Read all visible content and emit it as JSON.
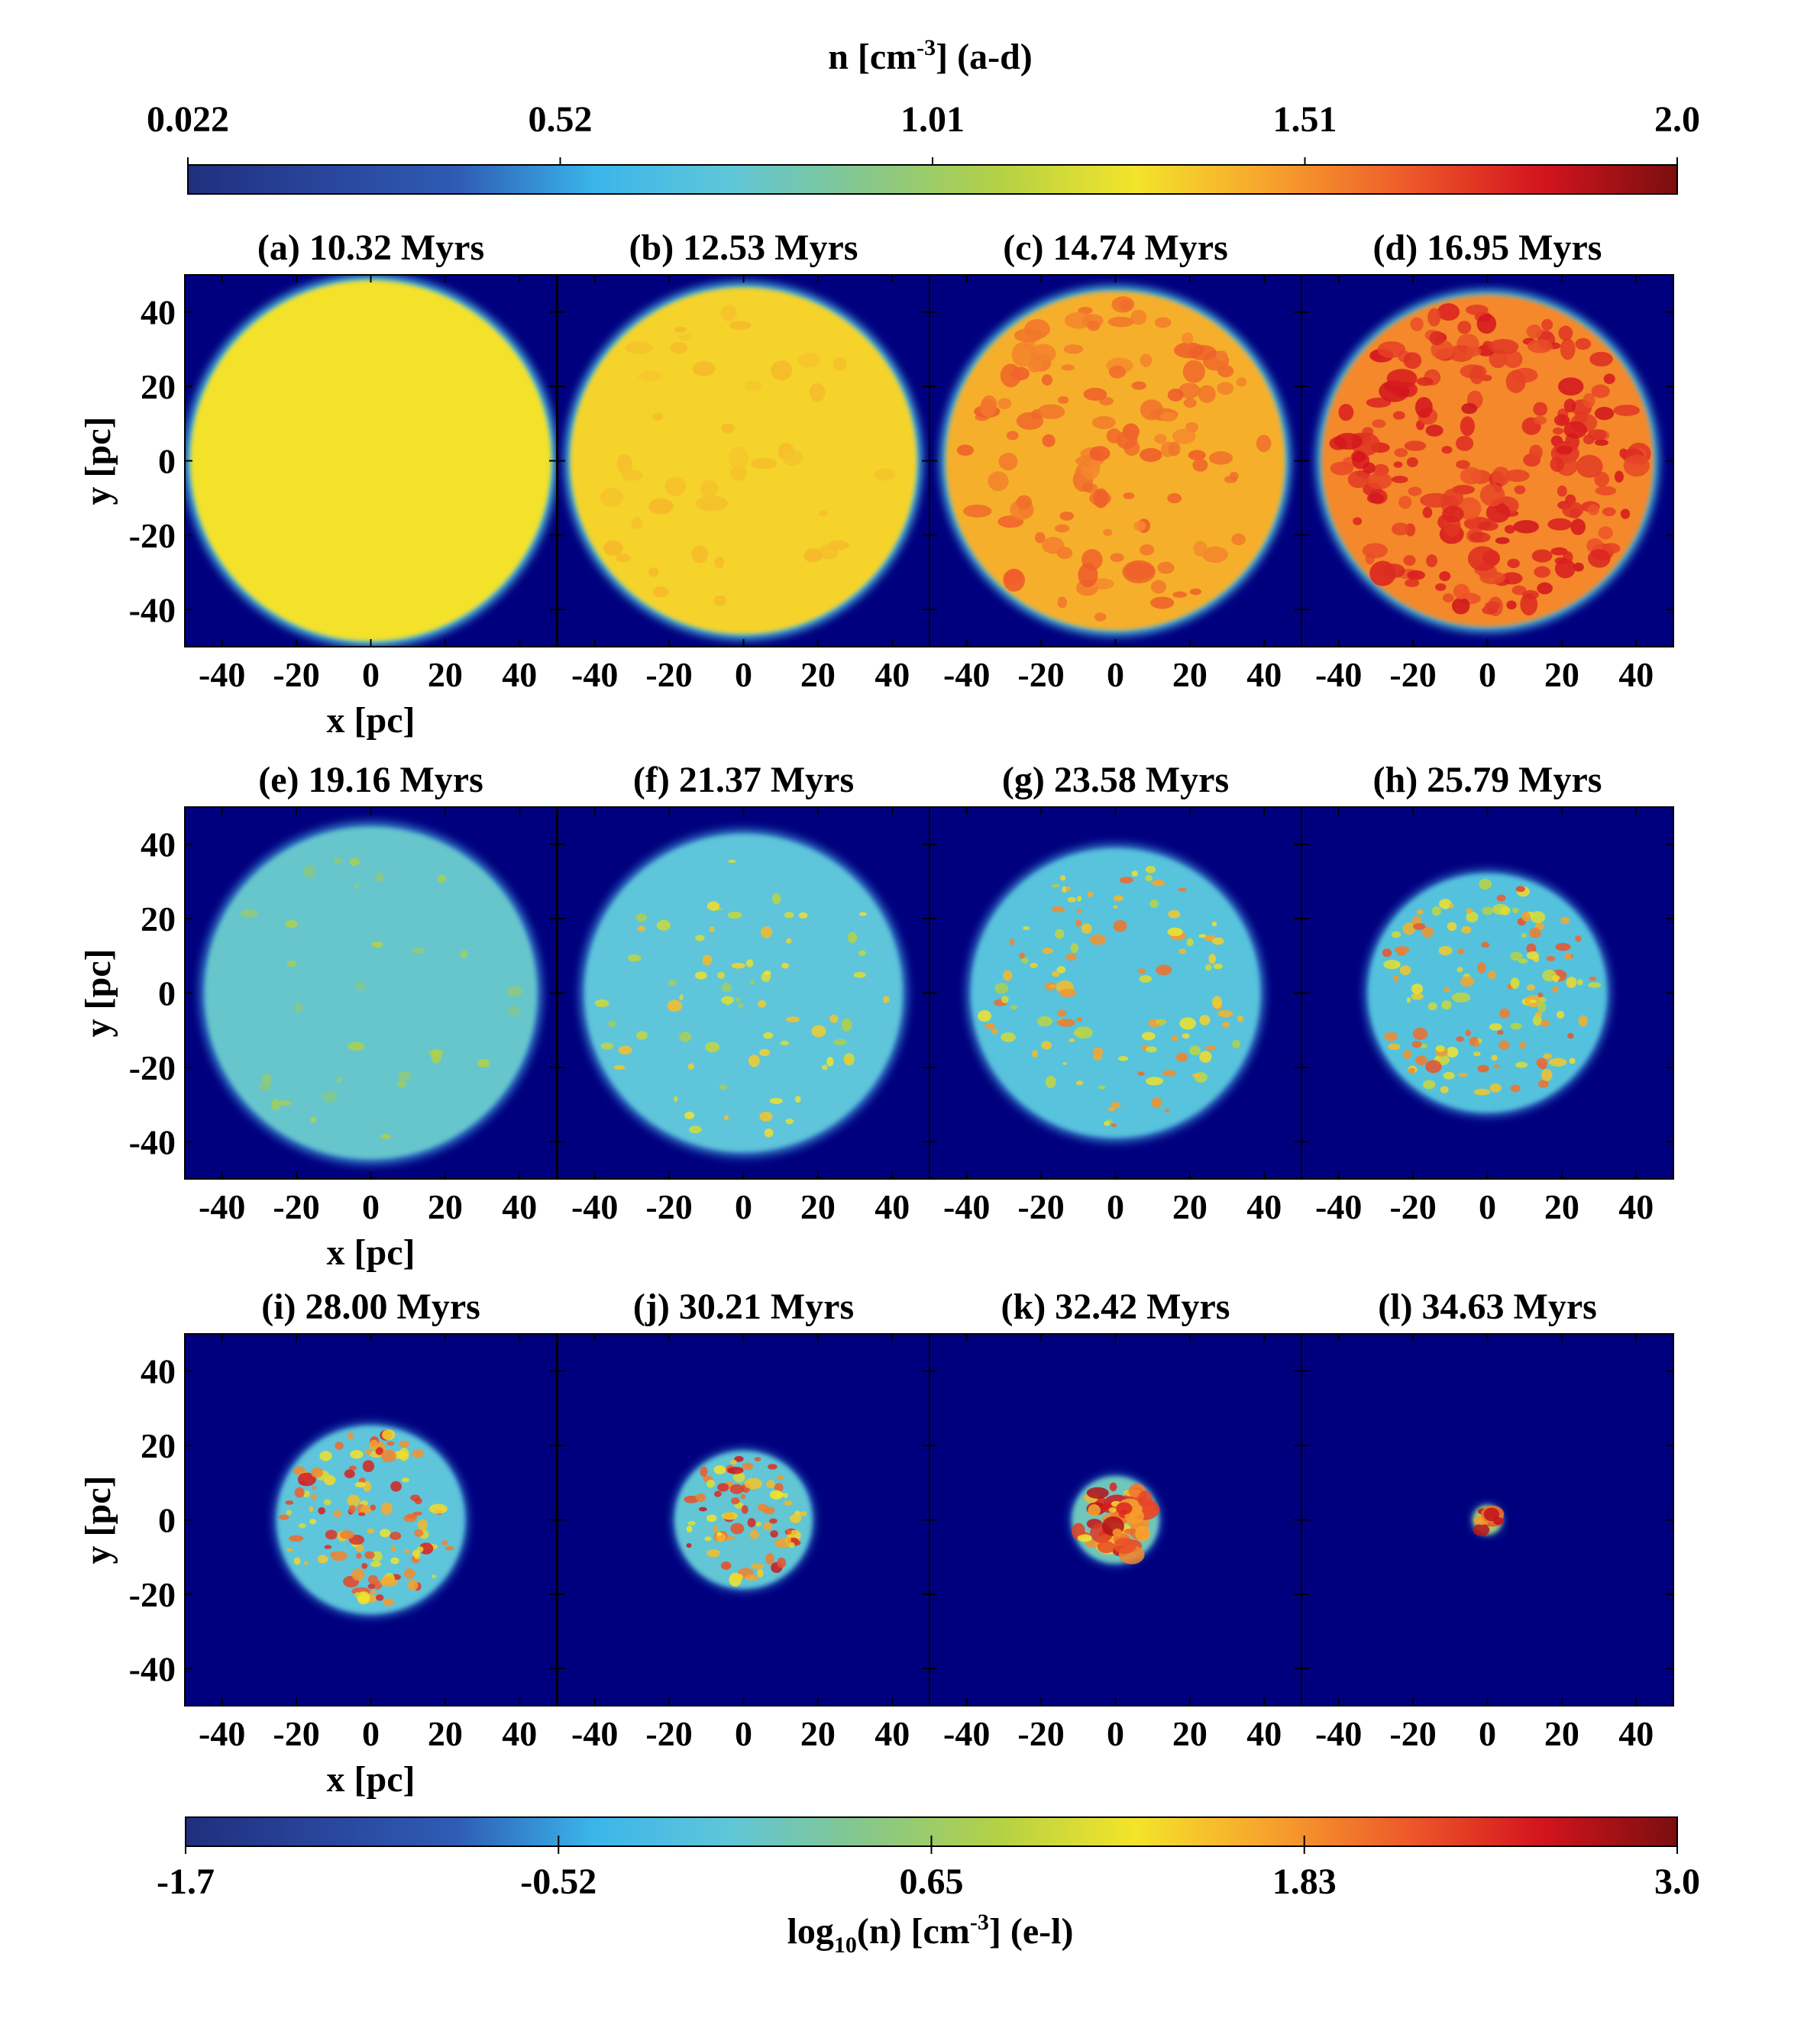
{
  "colors": {
    "jet": [
      "#1f2f7e",
      "#29459b",
      "#2f5cb5",
      "#3ab5ea",
      "#5fc6d9",
      "#86c78b",
      "#b4d145",
      "#f4e42a",
      "#f7a22d",
      "#ee5a2a",
      "#d4141e",
      "#7a0e0f"
    ],
    "background_field": "#00007f"
  },
  "chart_data": {
    "type": "heatmap",
    "description_grid": "3x4 panels of projected gas density",
    "colorbar_top": {
      "label_main": "n [cm",
      "label_sup": "-3",
      "label_tail": "] (a-d)",
      "ticks": [
        "0.022",
        "0.52",
        "1.01",
        "1.51",
        "2.0"
      ],
      "range": [
        0.022,
        2.0
      ]
    },
    "colorbar_bottom": {
      "label_pre": "log",
      "label_sub": "10",
      "label_mid": "(n) [cm",
      "label_sup": "-3",
      "label_tail": "] (e-l)",
      "ticks": [
        "-1.7",
        "-0.52",
        "0.65",
        "1.83",
        "3.0"
      ],
      "range": [
        -1.7,
        3.0
      ]
    },
    "axes": {
      "xlabel": "x [pc]",
      "ylabel": "y [pc]",
      "xlim": [
        -50,
        50
      ],
      "ylim": [
        -50,
        50
      ],
      "xticks": [
        "-40",
        "-20",
        "0",
        "20",
        "40"
      ],
      "yticks": [
        "40",
        "20",
        "0",
        "-20",
        "-40"
      ]
    },
    "panels": [
      {
        "title": "(a) 10.32 Myrs",
        "row": 0,
        "radius_pc": 50,
        "mean_level": 0.64,
        "clump_level": 0.0,
        "clumps": 0
      },
      {
        "title": "(b)  12.53 Myrs",
        "row": 0,
        "radius_pc": 48,
        "mean_level": 0.66,
        "clump_level": 0.7,
        "clumps": 40
      },
      {
        "title": "(c) 14.74 Myrs",
        "row": 0,
        "radius_pc": 47,
        "mean_level": 0.71,
        "clump_level": 0.82,
        "clumps": 120
      },
      {
        "title": "(d) 16.95 Myrs",
        "row": 0,
        "radius_pc": 46,
        "mean_level": 0.76,
        "clump_level": 0.92,
        "clumps": 220
      },
      {
        "title": "(e)  19.16 Myrs",
        "row": 1,
        "radius_pc": 46,
        "mean_level": 0.38,
        "clump_level": 0.55,
        "clumps": 30
      },
      {
        "title": "(f) 21.37 Myrs",
        "row": 1,
        "radius_pc": 44,
        "mean_level": 0.36,
        "clump_level": 0.7,
        "clumps": 70
      },
      {
        "title": "(g) 23.58 Myrs",
        "row": 1,
        "radius_pc": 40,
        "mean_level": 0.35,
        "clump_level": 0.8,
        "clumps": 110
      },
      {
        "title": "(h) 25.79 Myrs",
        "row": 1,
        "radius_pc": 33,
        "mean_level": 0.34,
        "clump_level": 0.85,
        "clumps": 130
      },
      {
        "title": "(i)  28.00 Myrs",
        "row": 2,
        "radius_pc": 26,
        "mean_level": 0.36,
        "clump_level": 0.9,
        "clumps": 120
      },
      {
        "title": "(j) 30.21 Myrs",
        "row": 2,
        "radius_pc": 19,
        "mean_level": 0.37,
        "clump_level": 0.92,
        "clumps": 80
      },
      {
        "title": "(k) 32.42 Myrs",
        "row": 2,
        "radius_pc": 12,
        "mean_level": 0.4,
        "clump_level": 0.95,
        "clumps": 50
      },
      {
        "title": "(l) 34.63 Myrs",
        "row": 2,
        "radius_pc": 4,
        "mean_level": 0.5,
        "clump_level": 0.97,
        "clumps": 8
      }
    ]
  }
}
